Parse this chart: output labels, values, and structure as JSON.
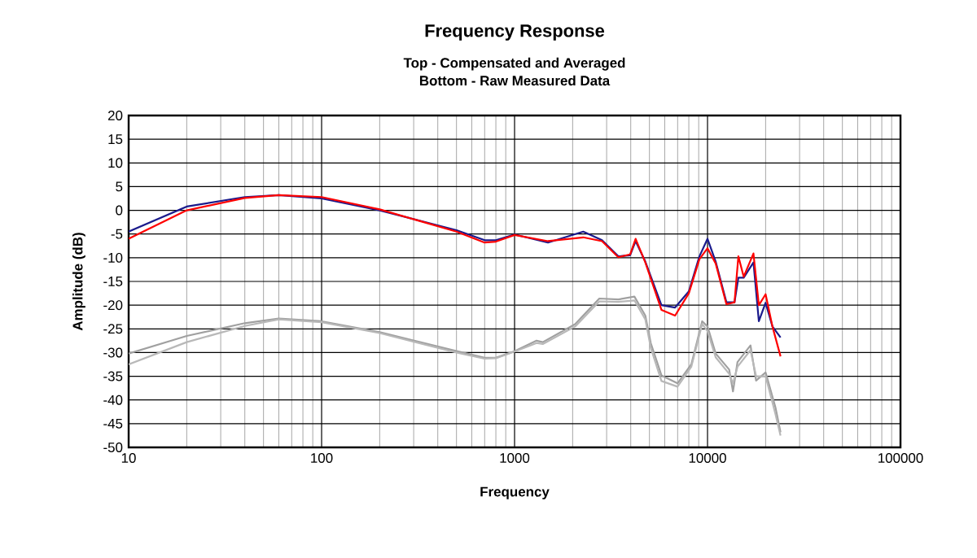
{
  "chart_data": {
    "type": "line",
    "title": "Frequency Response",
    "subtitle": "Top -  Compensated and Averaged\nBottom - Raw Measured Data",
    "xlabel": "Frequency",
    "ylabel": "Amplitude (dB)",
    "log": "x",
    "grid": true,
    "marker": "none",
    "line_style": "solid",
    "xlim": [
      10,
      100000
    ],
    "xticks": [
      10,
      100,
      1000,
      10000,
      100000
    ],
    "ylim": [
      -50,
      20
    ],
    "yticks": [
      -50,
      -45,
      -40,
      -35,
      -30,
      -25,
      -20,
      -15,
      -10,
      -5,
      0,
      5,
      10,
      15,
      20
    ],
    "series": [
      {
        "color": "#a0a0a0",
        "x": [
          10,
          20,
          40,
          60,
          100,
          200,
          500,
          700,
          800,
          1000,
          1300,
          1400,
          2060,
          2750,
          3450,
          4180,
          4760,
          5080,
          5770,
          6990,
          8240,
          9380,
          10000,
          11020,
          12950,
          13550,
          14300,
          16700,
          17850,
          20000,
          22500,
          23900
        ],
        "values": [
          -30.2,
          -26.5,
          -23.8,
          -22.8,
          -23.4,
          -25.7,
          -29.7,
          -31.1,
          -31.1,
          -29.7,
          -27.5,
          -27.8,
          -24,
          -18.6,
          -18.8,
          -18.2,
          -22.2,
          -28,
          -34.8,
          -36.5,
          -32.5,
          -23.4,
          -24.5,
          -30.2,
          -33.6,
          -38.2,
          -32,
          -28.5,
          -35.9,
          -34.2,
          -41.6,
          -46.8
        ]
      },
      {
        "color": "#b8b8b8",
        "x": [
          10,
          20,
          40,
          60,
          100,
          200,
          500,
          700,
          800,
          1000,
          1300,
          1400,
          2060,
          2750,
          3450,
          4180,
          4760,
          5080,
          5770,
          6990,
          8240,
          9380,
          10000,
          11020,
          12950,
          13550,
          14300,
          16700,
          17850,
          20000,
          22500,
          23900
        ],
        "values": [
          -32.5,
          -27.8,
          -24.4,
          -23,
          -23.6,
          -25.9,
          -30,
          -31.3,
          -31.2,
          -29.8,
          -28,
          -28.2,
          -24.5,
          -19.2,
          -19.3,
          -19,
          -23,
          -29,
          -36,
          -37.2,
          -33,
          -24,
          -25.5,
          -31,
          -34.5,
          -36.5,
          -33,
          -29.5,
          -35,
          -35,
          -43,
          -47.5
        ]
      },
      {
        "color": "#1a1a8c",
        "x": [
          10,
          20,
          40,
          60,
          100,
          200,
          500,
          700,
          800,
          1000,
          1490,
          2270,
          2840,
          3450,
          3970,
          4240,
          4760,
          5770,
          6790,
          8000,
          9080,
          10000,
          11020,
          12530,
          13800,
          14450,
          15400,
          17300,
          18450,
          20000,
          21700,
          23900
        ],
        "values": [
          -4.5,
          0.8,
          2.8,
          3.2,
          2.5,
          0,
          -4.2,
          -6.3,
          -6.3,
          -5.1,
          -6.8,
          -4.5,
          -6.3,
          -9.7,
          -9.5,
          -6.5,
          -10.8,
          -20,
          -20.5,
          -17.1,
          -9.7,
          -6,
          -10.8,
          -19.4,
          -19.4,
          -14.2,
          -14.2,
          -11,
          -23.4,
          -19.5,
          -24.5,
          -26.8
        ]
      },
      {
        "color": "#ff0000",
        "x": [
          10,
          20,
          40,
          60,
          100,
          200,
          500,
          700,
          800,
          1000,
          1490,
          2270,
          2840,
          3450,
          3970,
          4240,
          4760,
          5770,
          6790,
          8000,
          9080,
          10000,
          11020,
          12530,
          13800,
          14450,
          15400,
          17300,
          18450,
          20000,
          21700,
          23900
        ],
        "values": [
          -6,
          0,
          2.6,
          3.2,
          2.8,
          0.2,
          -4.5,
          -6.8,
          -6.6,
          -5.2,
          -6.5,
          -5.7,
          -6.5,
          -9.9,
          -9.3,
          -6,
          -11,
          -21,
          -22.2,
          -17.5,
          -10.3,
          -8,
          -11.2,
          -19.8,
          -19.4,
          -9.7,
          -14,
          -9.1,
          -20,
          -17.7,
          -24.5,
          -30.8
        ]
      }
    ]
  }
}
